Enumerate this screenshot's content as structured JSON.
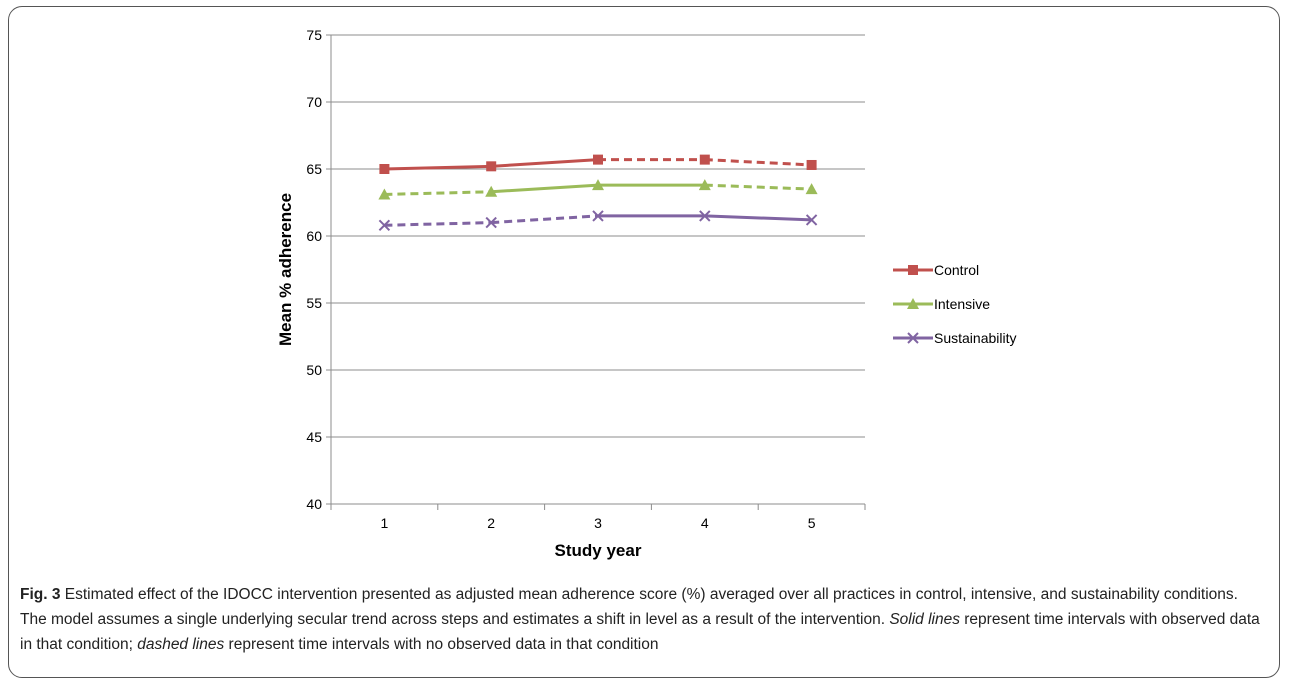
{
  "chart_data": {
    "type": "line",
    "xlabel": "Study year",
    "ylabel": "Mean % adherence",
    "x": [
      1,
      2,
      3,
      4,
      5
    ],
    "ylim": [
      40,
      75
    ],
    "yticks": [
      40,
      45,
      50,
      55,
      60,
      65,
      70,
      75
    ],
    "grid": true,
    "legend_position": "right",
    "series": [
      {
        "name": "Control",
        "color": "#c0504d",
        "marker": "square",
        "values": [
          65.0,
          65.2,
          65.7,
          65.7,
          65.3
        ],
        "segment_styles": [
          "solid",
          "solid",
          "dashed",
          "dashed"
        ]
      },
      {
        "name": "Intensive",
        "color": "#9bbb59",
        "marker": "triangle",
        "values": [
          63.1,
          63.3,
          63.8,
          63.8,
          63.5
        ],
        "segment_styles": [
          "dashed",
          "solid",
          "solid",
          "dashed"
        ]
      },
      {
        "name": "Sustainability",
        "color": "#8064a2",
        "marker": "x",
        "values": [
          60.8,
          61.0,
          61.5,
          61.5,
          61.2
        ],
        "segment_styles": [
          "dashed",
          "dashed",
          "solid",
          "solid"
        ]
      }
    ]
  },
  "caption": {
    "label": "Fig. 3",
    "text_1": " Estimated effect of the IDOCC intervention presented as adjusted mean adherence score (%) averaged over all practices in control, intensive, and sustainability conditions. The model assumes a single underlying secular trend across steps and estimates a shift in level as a result of the intervention. ",
    "solid_em": "Solid lines",
    "text_2": " represent time intervals with observed data in that condition; ",
    "dashed_em": "dashed lines",
    "text_3": " represent time intervals with no observed data in that condition"
  }
}
